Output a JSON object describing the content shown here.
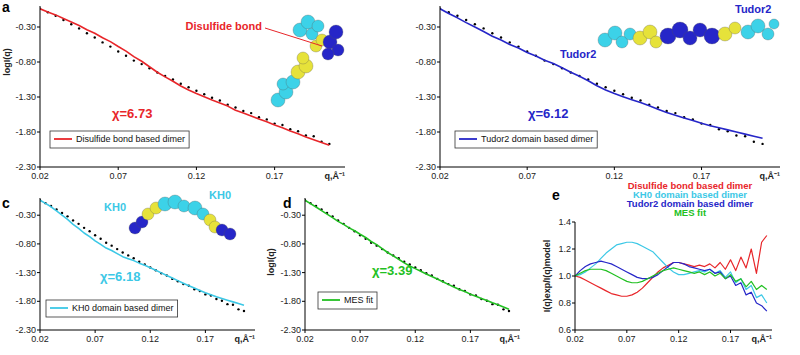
{
  "chart_data": [
    {
      "type": "line",
      "title": "a",
      "y_label": "logI(q)",
      "x_label": "q,Å⁻¹",
      "x": [
        0.02,
        0.025,
        0.03,
        0.035,
        0.04,
        0.045,
        0.05,
        0.055,
        0.06,
        0.065,
        0.07,
        0.075,
        0.08,
        0.085,
        0.09,
        0.095,
        0.1,
        0.105,
        0.11,
        0.115,
        0.12,
        0.125,
        0.13,
        0.135,
        0.14,
        0.145,
        0.15,
        0.155,
        0.16,
        0.165,
        0.17,
        0.175,
        0.18,
        0.185,
        0.19,
        0.195,
        0.2,
        0.205
      ],
      "xlim": [
        0.02,
        0.215
      ],
      "xticks": [
        0.02,
        0.07,
        0.12,
        0.17
      ],
      "ylim": [
        -2.3,
        0
      ],
      "yticks": [
        {
          "value": -2.3,
          "label": "-2.30"
        },
        {
          "value": -1.8,
          "label": "-1.80"
        },
        {
          "value": -1.3,
          "label": "-1.30"
        },
        {
          "value": -0.8,
          "label": "-0.80"
        },
        {
          "value": -0.3,
          "label": "-0.30"
        }
      ],
      "legend": "lower left",
      "series": [
        {
          "type": "scatter",
          "marker": "dot",
          "color": "#000000",
          "values": [
            -0.04,
            -0.09,
            -0.14,
            -0.2,
            -0.26,
            -0.32,
            -0.39,
            -0.45,
            -0.52,
            -0.58,
            -0.65,
            -0.71,
            -0.78,
            -0.83,
            -0.89,
            -0.95,
            -1.0,
            -1.05,
            -1.11,
            -1.16,
            -1.21,
            -1.26,
            -1.31,
            -1.35,
            -1.41,
            -1.45,
            -1.5,
            -1.53,
            -1.59,
            -1.62,
            -1.68,
            -1.7,
            -1.76,
            -1.79,
            -1.85,
            -1.86,
            -1.94,
            -1.97
          ]
        },
        {
          "type": "line",
          "line_style": "solid",
          "name": "Disulfide bond based dimer",
          "color": "#e8262a",
          "values": [
            -0.04,
            -0.086,
            -0.127,
            -0.178,
            -0.228,
            -0.279,
            -0.339,
            -0.39,
            -0.454,
            -0.509,
            -0.579,
            -0.644,
            -0.724,
            -0.789,
            -0.868,
            -0.946,
            -1.013,
            -1.075,
            -1.143,
            -1.201,
            -1.251,
            -1.297,
            -1.343,
            -1.385,
            -1.43,
            -1.49,
            -1.53,
            -1.57,
            -1.615,
            -1.655,
            -1.7,
            -1.74,
            -1.785,
            -1.825,
            -1.87,
            -1.91,
            -1.95,
            -1.99
          ]
        }
      ],
      "annotations": [
        {
          "text": "Disulfide bond",
          "color": "#e8262a"
        },
        {
          "text": "χ=6.73",
          "color": "#e8262a"
        }
      ]
    },
    {
      "type": "line",
      "x_label": "q,Å⁻¹",
      "x": [
        0.02,
        0.025,
        0.03,
        0.035,
        0.04,
        0.045,
        0.05,
        0.055,
        0.06,
        0.065,
        0.07,
        0.075,
        0.08,
        0.085,
        0.09,
        0.095,
        0.1,
        0.105,
        0.11,
        0.115,
        0.12,
        0.125,
        0.13,
        0.135,
        0.14,
        0.145,
        0.15,
        0.155,
        0.16,
        0.165,
        0.17,
        0.175,
        0.18,
        0.185,
        0.19,
        0.195,
        0.2,
        0.205
      ],
      "xlim": [
        0.02,
        0.215
      ],
      "xticks": [
        0.02,
        0.07,
        0.12,
        0.17
      ],
      "ylim": [
        -2.3,
        0
      ],
      "yticks": [
        {
          "value": -2.3,
          "label": "-2.30"
        },
        {
          "value": -1.8,
          "label": "-1.80"
        },
        {
          "value": -1.3,
          "label": "-1.30"
        },
        {
          "value": -0.8,
          "label": "-0.80"
        },
        {
          "value": -0.3,
          "label": "-0.30"
        }
      ],
      "legend": "lower left",
      "series": [
        {
          "type": "scatter",
          "marker": "dot",
          "color": "#000000",
          "values": [
            -0.04,
            -0.09,
            -0.14,
            -0.2,
            -0.26,
            -0.32,
            -0.39,
            -0.45,
            -0.52,
            -0.58,
            -0.65,
            -0.71,
            -0.78,
            -0.83,
            -0.89,
            -0.95,
            -1.0,
            -1.05,
            -1.11,
            -1.16,
            -1.21,
            -1.26,
            -1.31,
            -1.35,
            -1.41,
            -1.45,
            -1.5,
            -1.53,
            -1.59,
            -1.62,
            -1.68,
            -1.7,
            -1.76,
            -1.79,
            -1.85,
            -1.86,
            -1.94,
            -1.97
          ]
        },
        {
          "type": "line",
          "line_style": "solid",
          "name": "Tudor2 domain based dimer",
          "color": "#2626c8",
          "values": [
            -0.04,
            -0.107,
            -0.169,
            -0.237,
            -0.301,
            -0.365,
            -0.431,
            -0.487,
            -0.549,
            -0.601,
            -0.663,
            -0.714,
            -0.776,
            -0.821,
            -0.881,
            -0.946,
            -1.004,
            -1.067,
            -1.139,
            -1.201,
            -1.251,
            -1.297,
            -1.34,
            -1.38,
            -1.425,
            -1.475,
            -1.52,
            -1.56,
            -1.6,
            -1.635,
            -1.675,
            -1.71,
            -1.74,
            -1.77,
            -1.8,
            -1.83,
            -1.86,
            -1.89
          ]
        }
      ],
      "annotations": [
        {
          "text": "Tudor2",
          "color": "#2626c8"
        },
        {
          "text": "Tudor2",
          "color": "#2626c8"
        },
        {
          "text": "χ=6.12",
          "color": "#2626c8"
        }
      ]
    },
    {
      "type": "line",
      "title": "c",
      "x_label": "q,Å⁻¹",
      "x": [
        0.02,
        0.025,
        0.03,
        0.035,
        0.04,
        0.045,
        0.05,
        0.055,
        0.06,
        0.065,
        0.07,
        0.075,
        0.08,
        0.085,
        0.09,
        0.095,
        0.1,
        0.105,
        0.11,
        0.115,
        0.12,
        0.125,
        0.13,
        0.135,
        0.14,
        0.145,
        0.15,
        0.155,
        0.16,
        0.165,
        0.17,
        0.175,
        0.18,
        0.185,
        0.19,
        0.195,
        0.2,
        0.205
      ],
      "xlim": [
        0.02,
        0.215
      ],
      "xticks": [
        0.02,
        0.07,
        0.12,
        0.17
      ],
      "ylim": [
        -2.3,
        0
      ],
      "yticks": [
        {
          "value": -2.3,
          "label": "-2.30"
        },
        {
          "value": -1.8,
          "label": "-1.80"
        },
        {
          "value": -1.3,
          "label": "-1.30"
        },
        {
          "value": -0.8,
          "label": "-0.80"
        },
        {
          "value": -0.3,
          "label": "-0.30"
        }
      ],
      "legend": "lower left",
      "series": [
        {
          "type": "scatter",
          "marker": "dot",
          "color": "#000000",
          "values": [
            -0.04,
            -0.09,
            -0.14,
            -0.2,
            -0.26,
            -0.32,
            -0.39,
            -0.45,
            -0.52,
            -0.58,
            -0.65,
            -0.71,
            -0.78,
            -0.83,
            -0.89,
            -0.95,
            -1.0,
            -1.05,
            -1.11,
            -1.16,
            -1.21,
            -1.26,
            -1.31,
            -1.35,
            -1.41,
            -1.45,
            -1.5,
            -1.53,
            -1.59,
            -1.62,
            -1.68,
            -1.7,
            -1.76,
            -1.79,
            -1.85,
            -1.86,
            -1.94,
            -1.97
          ]
        },
        {
          "type": "line",
          "line_style": "solid",
          "name": "KH0 domain based dimer",
          "color": "#3cc8e6",
          "values": [
            -0.04,
            -0.094,
            -0.153,
            -0.225,
            -0.297,
            -0.373,
            -0.458,
            -0.529,
            -0.61,
            -0.673,
            -0.747,
            -0.807,
            -0.873,
            -0.916,
            -0.969,
            -1.022,
            -1.057,
            -1.091,
            -1.135,
            -1.173,
            -1.214,
            -1.26,
            -1.305,
            -1.35,
            -1.395,
            -1.44,
            -1.485,
            -1.53,
            -1.57,
            -1.61,
            -1.65,
            -1.685,
            -1.72,
            -1.75,
            -1.78,
            -1.81,
            -1.84,
            -1.87
          ]
        }
      ],
      "annotations": [
        {
          "text": "KH0",
          "color": "#3cc8e6"
        },
        {
          "text": "KH0",
          "color": "#3cc8e6"
        },
        {
          "text": "χ=6.18",
          "color": "#3cc8e6"
        }
      ]
    },
    {
      "type": "line",
      "title": "d",
      "y_label": "logI(q)",
      "x_label": "q,Å⁻¹",
      "x": [
        0.02,
        0.025,
        0.03,
        0.035,
        0.04,
        0.045,
        0.05,
        0.055,
        0.06,
        0.065,
        0.07,
        0.075,
        0.08,
        0.085,
        0.09,
        0.095,
        0.1,
        0.105,
        0.11,
        0.115,
        0.12,
        0.125,
        0.13,
        0.135,
        0.14,
        0.145,
        0.15,
        0.155,
        0.16,
        0.165,
        0.17,
        0.175,
        0.18,
        0.185,
        0.19,
        0.195,
        0.2,
        0.205
      ],
      "xlim": [
        0.02,
        0.215
      ],
      "xticks": [
        0.02,
        0.07,
        0.12,
        0.17
      ],
      "ylim": [
        -2.3,
        0
      ],
      "yticks": [
        {
          "value": -2.3,
          "label": "-2.30"
        },
        {
          "value": -1.8,
          "label": "-1.80"
        },
        {
          "value": -1.3,
          "label": "-1.30"
        },
        {
          "value": -0.8,
          "label": "-0.80"
        },
        {
          "value": -0.3,
          "label": "-0.30"
        }
      ],
      "legend": "lower left",
      "series": [
        {
          "type": "scatter",
          "marker": "dot",
          "color": "#000000",
          "values": [
            -0.04,
            -0.09,
            -0.14,
            -0.2,
            -0.26,
            -0.32,
            -0.39,
            -0.45,
            -0.52,
            -0.58,
            -0.65,
            -0.71,
            -0.78,
            -0.83,
            -0.89,
            -0.95,
            -1.0,
            -1.05,
            -1.11,
            -1.16,
            -1.21,
            -1.26,
            -1.31,
            -1.35,
            -1.41,
            -1.45,
            -1.5,
            -1.53,
            -1.59,
            -1.62,
            -1.68,
            -1.7,
            -1.76,
            -1.79,
            -1.85,
            -1.86,
            -1.94,
            -1.97
          ]
        },
        {
          "type": "line",
          "line_style": "solid",
          "name": "MES fit",
          "color": "#22c022",
          "values": [
            -0.04,
            -0.099,
            -0.157,
            -0.221,
            -0.281,
            -0.341,
            -0.407,
            -0.459,
            -0.52,
            -0.571,
            -0.632,
            -0.688,
            -0.758,
            -0.812,
            -0.881,
            -0.95,
            -1.009,
            -1.067,
            -1.131,
            -1.185,
            -1.231,
            -1.277,
            -1.323,
            -1.368,
            -1.413,
            -1.46,
            -1.505,
            -1.55,
            -1.595,
            -1.63,
            -1.675,
            -1.71,
            -1.75,
            -1.785,
            -1.825,
            -1.86,
            -1.9,
            -1.94
          ]
        }
      ],
      "annotations": [
        {
          "text": "χ=3.39",
          "color": "#22c022"
        }
      ]
    },
    {
      "type": "line",
      "title": "e",
      "y_label": "I(q)exp/I(q)model",
      "x_label": "q,Å⁻¹",
      "x": [
        0.02,
        0.025,
        0.03,
        0.035,
        0.04,
        0.045,
        0.05,
        0.055,
        0.06,
        0.065,
        0.07,
        0.075,
        0.08,
        0.085,
        0.09,
        0.095,
        0.1,
        0.105,
        0.11,
        0.115,
        0.12,
        0.125,
        0.13,
        0.135,
        0.14,
        0.145,
        0.15,
        0.155,
        0.16,
        0.165,
        0.17,
        0.175,
        0.18,
        0.185,
        0.19,
        0.195,
        0.2,
        0.205
      ],
      "xlim": [
        0.02,
        0.21
      ],
      "xticks": [
        0.02,
        0.07,
        0.12,
        0.17
      ],
      "ylim": [
        0.6,
        1.4
      ],
      "yticks": [
        0.6,
        0.8,
        {
          "value": 1,
          "label": "1.0"
        },
        1.2,
        1.4
      ],
      "legend": "top",
      "series": [
        {
          "name": "Disulfide bond based dimer",
          "color": "#e8262a",
          "values": [
            1.0,
            0.99,
            0.97,
            0.95,
            0.93,
            0.91,
            0.89,
            0.87,
            0.86,
            0.85,
            0.85,
            0.86,
            0.88,
            0.91,
            0.95,
            0.99,
            1.03,
            1.06,
            1.08,
            1.1,
            1.1,
            1.09,
            1.08,
            1.07,
            1.08,
            1.07,
            1.09,
            1.06,
            1.1,
            1.05,
            1.12,
            1.04,
            1.14,
            1.06,
            1.2,
            1.02,
            1.25,
            1.3
          ]
        },
        {
          "name": "KH0 domain based dimer",
          "color": "#3cc8e6",
          "values": [
            1.0,
            1.01,
            1.03,
            1.06,
            1.09,
            1.13,
            1.17,
            1.2,
            1.23,
            1.24,
            1.25,
            1.25,
            1.24,
            1.22,
            1.2,
            1.18,
            1.14,
            1.1,
            1.06,
            1.03,
            1.01,
            1.01,
            1.02,
            1.03,
            1.04,
            1.03,
            1.05,
            1.02,
            1.04,
            0.99,
            1.03,
            0.95,
            0.98,
            0.9,
            0.93,
            0.84,
            0.86,
            0.8
          ]
        },
        {
          "name": "Tudor2 domain based dimer",
          "color": "#2626c8",
          "values": [
            1.0,
            1.04,
            1.07,
            1.09,
            1.1,
            1.11,
            1.1,
            1.09,
            1.07,
            1.05,
            1.03,
            1.01,
            0.99,
            0.98,
            0.98,
            0.99,
            1.01,
            1.04,
            1.07,
            1.1,
            1.1,
            1.09,
            1.07,
            1.06,
            1.05,
            1.04,
            1.05,
            1.02,
            1.03,
            0.98,
            1.0,
            0.93,
            0.95,
            0.86,
            0.88,
            0.8,
            0.78,
            0.74
          ]
        },
        {
          "name": "MES fit",
          "color": "#22c022",
          "values": [
            1.0,
            1.02,
            1.04,
            1.05,
            1.05,
            1.05,
            1.04,
            1.02,
            1.0,
            0.98,
            0.96,
            0.95,
            0.95,
            0.96,
            0.98,
            1.0,
            1.02,
            1.04,
            1.05,
            1.06,
            1.05,
            1.04,
            1.03,
            1.02,
            1.03,
            1.01,
            1.03,
            1.0,
            1.02,
            0.98,
            1.01,
            0.96,
            0.98,
            0.92,
            0.96,
            0.9,
            0.93,
            0.9
          ]
        }
      ]
    }
  ]
}
